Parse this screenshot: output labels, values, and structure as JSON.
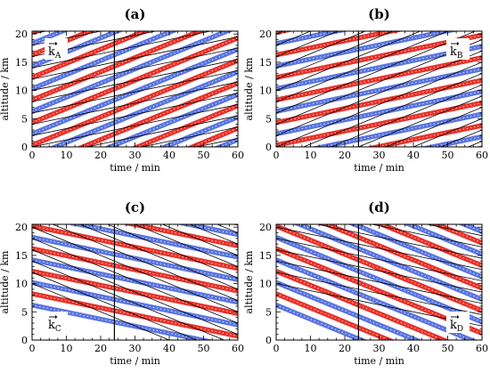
{
  "chart_data": [
    {
      "type": "line",
      "panel": "(a)",
      "title": "(a)",
      "xlabel": "time / min",
      "ylabel": "altitude / km",
      "xlim": [
        0,
        60
      ],
      "ylim": [
        0,
        20.5
      ],
      "xticks": [
        0,
        10,
        20,
        30,
        40,
        50,
        60
      ],
      "yticks": [
        0,
        5,
        10,
        15,
        20
      ],
      "vline_x": 24,
      "annotation": "k",
      "annotation_sub": "A",
      "annotation_position": "top-left",
      "series": [
        {
          "color": "#e8322a",
          "slope_km_per_min": 0.25,
          "spacing_km": 4.0,
          "offsets_km": [
            0.3
          ],
          "width": "thick"
        },
        {
          "color": "#5a75e0",
          "slope_km_per_min": 0.25,
          "spacing_km": 4.0,
          "offsets_km": [
            2.3
          ],
          "width": "thick"
        },
        {
          "color": "#000000",
          "slope_km_per_min": 0.125,
          "spacing_km": 2.0,
          "offsets_km": [
            0.0
          ],
          "width": "thin"
        }
      ]
    },
    {
      "type": "line",
      "panel": "(b)",
      "title": "(b)",
      "xlabel": "time / min",
      "ylabel": "altitude / km",
      "xlim": [
        0,
        60
      ],
      "ylim": [
        0,
        20.5
      ],
      "xticks": [
        0,
        10,
        20,
        30,
        40,
        50,
        60
      ],
      "yticks": [
        0,
        5,
        10,
        15,
        20
      ],
      "vline_x": 24,
      "annotation": "k",
      "annotation_sub": "B",
      "annotation_position": "top-right",
      "series": [
        {
          "color": "#e8322a",
          "slope_km_per_min": 0.125,
          "spacing_km": 4.0,
          "offsets_km": [
            0.3
          ],
          "width": "thick"
        },
        {
          "color": "#5a75e0",
          "slope_km_per_min": 0.125,
          "spacing_km": 4.0,
          "offsets_km": [
            2.3
          ],
          "width": "thick"
        },
        {
          "color": "#000000",
          "slope_km_per_min": 0.25,
          "spacing_km": 2.0,
          "offsets_km": [
            0.0
          ],
          "width": "thin"
        }
      ]
    },
    {
      "type": "line",
      "panel": "(c)",
      "title": "(c)",
      "xlabel": "time / min",
      "ylabel": "altitude / km",
      "xlim": [
        0,
        60
      ],
      "ylim": [
        0,
        20.5
      ],
      "xticks": [
        0,
        10,
        20,
        30,
        40,
        50,
        60
      ],
      "yticks": [
        0,
        5,
        10,
        15,
        20
      ],
      "vline_x": 24,
      "annotation": "k",
      "annotation_sub": "C",
      "annotation_position": "bottom-left",
      "series": [
        {
          "color": "#e8322a",
          "slope_km_per_min": -0.125,
          "spacing_km": 4.0,
          "offsets_km": [
            20.2
          ],
          "width": "thick"
        },
        {
          "color": "#5a75e0",
          "slope_km_per_min": -0.125,
          "spacing_km": 4.0,
          "offsets_km": [
            18.2
          ],
          "width": "thick"
        },
        {
          "color": "#000000",
          "slope_km_per_min": -0.25,
          "spacing_km": 2.0,
          "offsets_km": [
            20.0
          ],
          "width": "thin"
        }
      ]
    },
    {
      "type": "line",
      "panel": "(d)",
      "title": "(d)",
      "xlabel": "time / min",
      "ylabel": "altitude / km",
      "xlim": [
        0,
        60
      ],
      "ylim": [
        0,
        20.5
      ],
      "xticks": [
        0,
        10,
        20,
        30,
        40,
        50,
        60
      ],
      "yticks": [
        0,
        5,
        10,
        15,
        20
      ],
      "vline_x": 24,
      "annotation": "k",
      "annotation_sub": "D",
      "annotation_position": "bottom-right",
      "series": [
        {
          "color": "#e8322a",
          "slope_km_per_min": -0.25,
          "spacing_km": 4.0,
          "offsets_km": [
            20.2
          ],
          "width": "thick"
        },
        {
          "color": "#5a75e0",
          "slope_km_per_min": -0.25,
          "spacing_km": 4.0,
          "offsets_km": [
            18.2
          ],
          "width": "thick"
        },
        {
          "color": "#000000",
          "slope_km_per_min": -0.125,
          "spacing_km": 2.0,
          "offsets_km": [
            20.0
          ],
          "width": "thin"
        }
      ]
    }
  ]
}
